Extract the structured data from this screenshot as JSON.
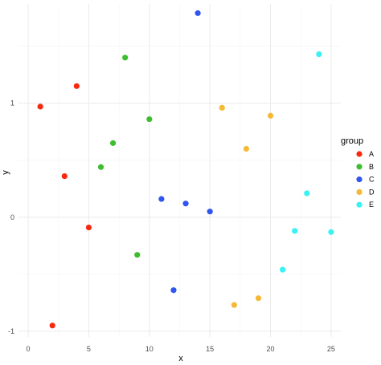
{
  "chart_data": {
    "type": "scatter",
    "xlabel": "x",
    "ylabel": "y",
    "xlim": [
      -0.8,
      25.8
    ],
    "ylim": [
      -1.05,
      1.87
    ],
    "x_ticks": [
      0,
      5,
      10,
      15,
      20,
      25
    ],
    "y_ticks": [
      -1,
      0,
      1
    ],
    "grid": true,
    "legend": {
      "title": "group",
      "position": "right"
    },
    "series": [
      {
        "name": "A",
        "color": "#F8290F",
        "points": [
          {
            "x": 1,
            "y": 0.97
          },
          {
            "x": 2,
            "y": -0.95
          },
          {
            "x": 3,
            "y": 0.36
          },
          {
            "x": 4,
            "y": 1.15
          },
          {
            "x": 5,
            "y": -0.09
          }
        ]
      },
      {
        "name": "B",
        "color": "#3DBE2E",
        "points": [
          {
            "x": 6,
            "y": 0.44
          },
          {
            "x": 7,
            "y": 0.65
          },
          {
            "x": 8,
            "y": 1.4
          },
          {
            "x": 9,
            "y": -0.33
          },
          {
            "x": 10,
            "y": 0.86
          }
        ]
      },
      {
        "name": "C",
        "color": "#2F56F0",
        "points": [
          {
            "x": 11,
            "y": 0.16
          },
          {
            "x": 12,
            "y": -0.64
          },
          {
            "x": 13,
            "y": 0.12
          },
          {
            "x": 14,
            "y": 1.79
          },
          {
            "x": 15,
            "y": 0.05
          }
        ]
      },
      {
        "name": "D",
        "color": "#F6B936",
        "points": [
          {
            "x": 16,
            "y": 0.96
          },
          {
            "x": 17,
            "y": -0.77
          },
          {
            "x": 18,
            "y": 0.6
          },
          {
            "x": 19,
            "y": -0.71
          },
          {
            "x": 20,
            "y": 0.89
          }
        ]
      },
      {
        "name": "E",
        "color": "#38F2F4",
        "points": [
          {
            "x": 21,
            "y": -0.46
          },
          {
            "x": 22,
            "y": -0.12
          },
          {
            "x": 23,
            "y": 0.21
          },
          {
            "x": 24,
            "y": 1.43
          },
          {
            "x": 25,
            "y": -0.13
          }
        ]
      }
    ]
  }
}
